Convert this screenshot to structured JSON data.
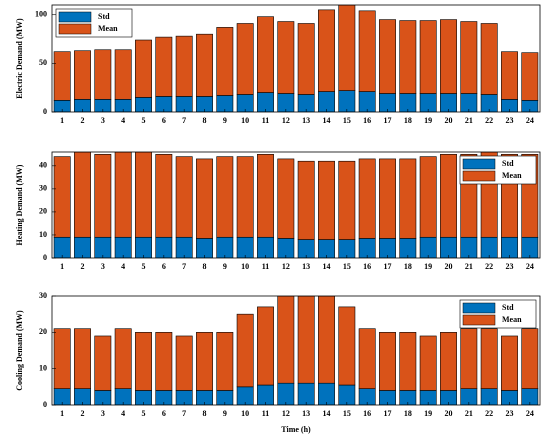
{
  "chart_data": [
    {
      "type": "stacked_bar",
      "y_label": "Electric Demand (MW)",
      "legend": "upper left",
      "categories": [
        "1",
        "2",
        "3",
        "4",
        "5",
        "6",
        "7",
        "8",
        "9",
        "10",
        "11",
        "12",
        "13",
        "14",
        "15",
        "16",
        "17",
        "18",
        "19",
        "20",
        "21",
        "22",
        "23",
        "24"
      ],
      "series": [
        {
          "name": "Std",
          "color": "#0072bd",
          "values": [
            12,
            13,
            13,
            13,
            15,
            16,
            16,
            16,
            17,
            18,
            20,
            19,
            18,
            21,
            22,
            21,
            19,
            19,
            19,
            19,
            19,
            18,
            13,
            12
          ]
        },
        {
          "name": "Mean",
          "color": "#d95319",
          "values": [
            50,
            50,
            51,
            51,
            59,
            61,
            62,
            64,
            70,
            73,
            78,
            74,
            73,
            84,
            88,
            83,
            76,
            75,
            75,
            76,
            74,
            73,
            49,
            49
          ]
        }
      ],
      "ylim": [
        0,
        110
      ],
      "yticks": [
        0,
        50,
        100
      ]
    },
    {
      "type": "stacked_bar",
      "y_label": "Heating Demand (MW)",
      "legend": "upper right",
      "categories": [
        "1",
        "2",
        "3",
        "4",
        "5",
        "6",
        "7",
        "8",
        "9",
        "10",
        "11",
        "12",
        "13",
        "14",
        "15",
        "16",
        "17",
        "18",
        "19",
        "20",
        "21",
        "22",
        "23",
        "24"
      ],
      "series": [
        {
          "name": "Std",
          "color": "#0072bd",
          "values": [
            9,
            9,
            9,
            9,
            9,
            9,
            9,
            8.5,
            9,
            9,
            9,
            8.5,
            8,
            8,
            8,
            8.5,
            8.5,
            8.5,
            9,
            9,
            9,
            9,
            9,
            9
          ]
        },
        {
          "name": "Mean",
          "color": "#d95319",
          "values": [
            35,
            37,
            36,
            37,
            37,
            36,
            35,
            34.5,
            35,
            35,
            36,
            34.5,
            34,
            34,
            34,
            34.5,
            34.5,
            34.5,
            35,
            36,
            36,
            37,
            36,
            36
          ]
        }
      ],
      "ylim": [
        0,
        46
      ],
      "yticks": [
        0,
        10,
        20,
        30,
        40
      ]
    },
    {
      "type": "stacked_bar",
      "y_label": "Cooling Demand (MW)",
      "x_label": "Time (h)",
      "legend": "upper right",
      "categories": [
        "1",
        "2",
        "3",
        "4",
        "5",
        "6",
        "7",
        "8",
        "9",
        "10",
        "11",
        "12",
        "13",
        "14",
        "15",
        "16",
        "17",
        "18",
        "19",
        "20",
        "21",
        "22",
        "23",
        "24"
      ],
      "series": [
        {
          "name": "Std",
          "color": "#0072bd",
          "values": [
            4.5,
            4.5,
            4,
            4.5,
            4,
            4,
            4,
            4,
            4,
            5,
            5.5,
            6,
            6,
            6,
            5.5,
            4.5,
            4,
            4,
            4,
            4,
            4.5,
            4.5,
            4,
            4.5
          ]
        },
        {
          "name": "Mean",
          "color": "#d95319",
          "values": [
            16.5,
            16.5,
            15,
            16.5,
            16,
            16,
            15,
            16,
            16,
            20,
            21.5,
            24,
            24,
            24,
            21.5,
            16.5,
            16,
            16,
            15,
            16,
            16.5,
            16.5,
            15,
            16.5
          ]
        }
      ],
      "ylim": [
        0,
        30
      ],
      "yticks": [
        0,
        10,
        20,
        30
      ]
    }
  ]
}
